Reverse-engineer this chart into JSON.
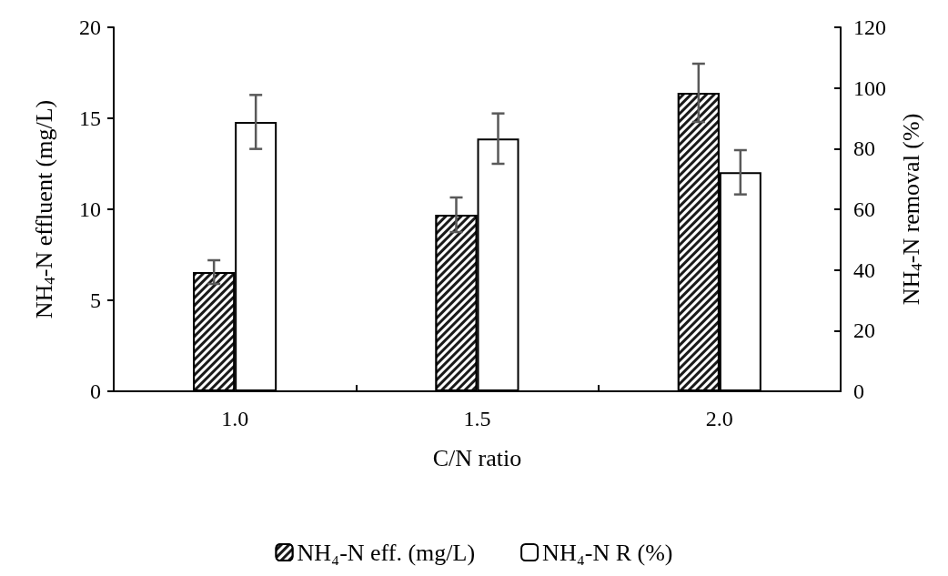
{
  "chart_data": {
    "type": "bar",
    "xlabel": "C/N ratio",
    "ylabel": "NH$_{4}$-N effluent (mg/L)",
    "y2label": "NH$_{4}$-N removal (%)",
    "categories": [
      "1.0",
      "1.5",
      "2.0"
    ],
    "series": [
      {
        "name": "NH₄-N eff. (mg/L)",
        "color": "#1a1a1a",
        "values": [
          6.55,
          9.7,
          16.4
        ],
        "errors": [
          0.65,
          0.95,
          1.6
        ]
      },
      {
        "name": "NH₄-N R (%)",
        "color": "#ffffff",
        "axis": "y2",
        "values": [
          88.8,
          83.3,
          72.2
        ],
        "errors": [
          8.9,
          8.3,
          7.3
        ]
      }
    ],
    "ylim": [
      0,
      20
    ],
    "yticks": [
      0,
      5,
      10,
      15,
      20
    ],
    "y2lim": [
      0,
      120
    ],
    "y2ticks": [
      0,
      20,
      40,
      60,
      80,
      100,
      120
    ],
    "grid": false,
    "legend": "bottom"
  }
}
